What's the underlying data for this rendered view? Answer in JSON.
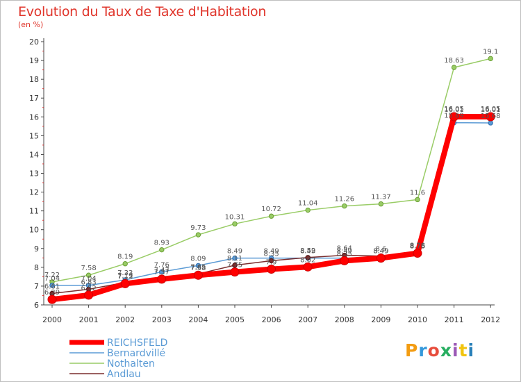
{
  "title": "Evolution du Taux de Taxe d'Habitation",
  "subtitle": "(en %)",
  "logo": {
    "text": "Proxiti",
    "colors": [
      "#f39c12",
      "#3498db",
      "#e74c3c",
      "#27ae60",
      "#9b59b6",
      "#f1c40f",
      "#2980b9"
    ]
  },
  "chart_data": {
    "type": "line",
    "x": [
      "2000",
      "2001",
      "2002",
      "2003",
      "2004",
      "2005",
      "2006",
      "2007",
      "2008",
      "2009",
      "2010",
      "2011",
      "2012"
    ],
    "ylim": [
      6,
      20
    ],
    "yticks": [
      "6",
      "7",
      "8",
      "9",
      "10",
      "11",
      "12",
      "13",
      "14",
      "15",
      "16",
      "17",
      "18",
      "19",
      "20"
    ],
    "grid": false,
    "legend_position": "bottom-left",
    "series": [
      {
        "name": "REICHSFELD",
        "color": "#ff0000",
        "values": [
          6.29,
          6.52,
          7.13,
          7.37,
          7.58,
          7.75,
          7.9,
          8.02,
          8.35,
          8.49,
          8.75,
          16.01,
          16.01
        ]
      },
      {
        "name": "Bernardvillé",
        "color": "#5b9bd5",
        "values": [
          7.04,
          7.04,
          7.33,
          7.76,
          8.09,
          8.49,
          8.49,
          8.49,
          8.49,
          8.49,
          8.78,
          15.69,
          15.68
        ]
      },
      {
        "name": "Nothalten",
        "color": "#99cc66",
        "values": [
          7.22,
          7.58,
          8.19,
          8.93,
          9.73,
          10.31,
          10.72,
          11.04,
          11.26,
          11.37,
          11.6,
          18.63,
          19.1
        ]
      },
      {
        "name": "Andlau",
        "color": "#7b2d2d",
        "values": [
          6.61,
          6.83,
          7.19,
          7.47,
          7.65,
          8.11,
          8.35,
          8.52,
          8.64,
          8.6,
          8.76,
          16.05,
          16.05
        ]
      }
    ],
    "data_labels": {
      "REICHSFELD": [
        "6.29",
        "6.52",
        "7.13",
        "7.37",
        "7.58",
        "7.75",
        "7.9",
        "8.02",
        "8.35",
        "8.49",
        "8.75",
        "16.01",
        "16.01"
      ],
      "Bernardvillé": [
        "7.04",
        "7.04",
        "7.33",
        "7.76",
        "8.09",
        "8.49",
        "8.49",
        "8.49",
        "8.49",
        "8.49",
        "8.78",
        "15.69",
        "15.68"
      ],
      "Nothalten": [
        "7.22",
        "7.58",
        "8.19",
        "8.93",
        "9.73",
        "10.31",
        "10.72",
        "11.04",
        "11.26",
        "11.37",
        "11.6",
        "18.63",
        "19.1"
      ],
      "Andlau": [
        "6.61",
        "6.83",
        "7.19",
        "7.47",
        "7.65",
        "8.11",
        "8.35",
        "8.52",
        "8.64",
        "8.6",
        "8.76",
        "16.05",
        "16.05"
      ]
    }
  }
}
